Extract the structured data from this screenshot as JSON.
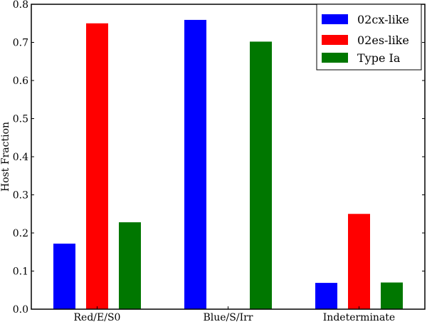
{
  "chart_data": {
    "type": "bar",
    "title": "",
    "xlabel": "",
    "ylabel": "Host Fraction",
    "ylim": [
      0,
      0.8
    ],
    "yticks": [
      "0.0",
      "0.1",
      "0.2",
      "0.3",
      "0.4",
      "0.5",
      "0.6",
      "0.7",
      "0.8"
    ],
    "categories": [
      "Red/E/S0",
      "Blue/S/Irr",
      "Indeterminate"
    ],
    "series": [
      {
        "name": "02cx-like",
        "color": "#0000ff",
        "values": [
          0.172,
          0.759,
          0.069
        ]
      },
      {
        "name": "02es-like",
        "color": "#ff0000",
        "values": [
          0.75,
          0.0,
          0.25
        ]
      },
      {
        "name": "Type Ia",
        "color": "#007700",
        "values": [
          0.228,
          0.702,
          0.07
        ]
      }
    ],
    "legend_position": "upper right",
    "grid": false
  },
  "labels": {
    "ylabel": "Host Fraction",
    "categories": [
      "Red/E/S0",
      "Blue/S/Irr",
      "Indeterminate"
    ],
    "legend": [
      "02cx-like",
      "02es-like",
      "Type Ia"
    ],
    "yticks": [
      "0.0",
      "0.1",
      "0.2",
      "0.3",
      "0.4",
      "0.5",
      "0.6",
      "0.7",
      "0.8"
    ]
  }
}
